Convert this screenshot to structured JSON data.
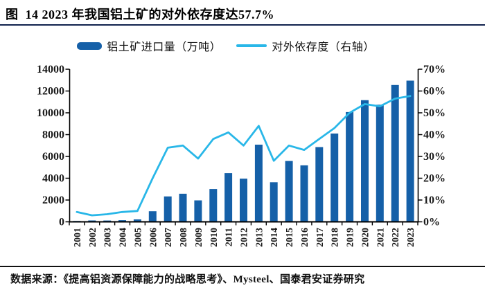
{
  "header": {
    "title": "图  14 2023 年我国铝土矿的对外依存度达57.7%"
  },
  "legend": {
    "items": [
      {
        "label": "铝土矿进口量（万吨）",
        "type": "bar",
        "color": "#1560A8"
      },
      {
        "label": "对外依存度（右轴）",
        "type": "line",
        "color": "#29B7E8"
      }
    ]
  },
  "colors": {
    "bar": "#1560A8",
    "line": "#29B7E8",
    "axis": "#000000",
    "rule": "#10214d"
  },
  "chart_data": {
    "type": "bar+line combo",
    "categories": [
      "2001",
      "2002",
      "2003",
      "2004",
      "2005",
      "2006",
      "2007",
      "2008",
      "2009",
      "2010",
      "2011",
      "2012",
      "2013",
      "2014",
      "2015",
      "2016",
      "2017",
      "2018",
      "2019",
      "2020",
      "2021",
      "2022",
      "2023"
    ],
    "series": [
      {
        "name": "铝土矿进口量（万吨）",
        "type": "bar",
        "axis": "left",
        "color": "#1560A8",
        "values": [
          80,
          130,
          120,
          150,
          220,
          970,
          2330,
          2580,
          1970,
          3010,
          4470,
          3960,
          7080,
          3630,
          5580,
          5180,
          6860,
          8100,
          10070,
          11160,
          10740,
          12550,
          12950
        ]
      },
      {
        "name": "对外依存度（右轴）",
        "type": "line",
        "axis": "right",
        "color": "#29B7E8",
        "values": [
          4.5,
          3,
          3.5,
          4.5,
          5,
          20,
          34,
          35,
          29,
          38,
          41,
          35,
          44,
          28,
          35,
          33,
          38,
          43,
          50,
          54,
          53,
          56.5,
          57.7
        ]
      }
    ],
    "left_axis": {
      "min": 0,
      "max": 14000,
      "step": 2000,
      "ticks": [
        "0",
        "2000",
        "4000",
        "6000",
        "8000",
        "10000",
        "12000",
        "14000"
      ]
    },
    "right_axis": {
      "min": 0,
      "max": 70,
      "step": 10,
      "ticks": [
        "0%",
        "10%",
        "20%",
        "30%",
        "40%",
        "50%",
        "60%",
        "70%"
      ]
    },
    "grid": false,
    "legend_position": "top",
    "x_label_rotation": -90
  },
  "footer": {
    "source": "数据来源：《提高铝资源保障能力的战略思考》、Mysteel、国泰君安证券研究"
  }
}
